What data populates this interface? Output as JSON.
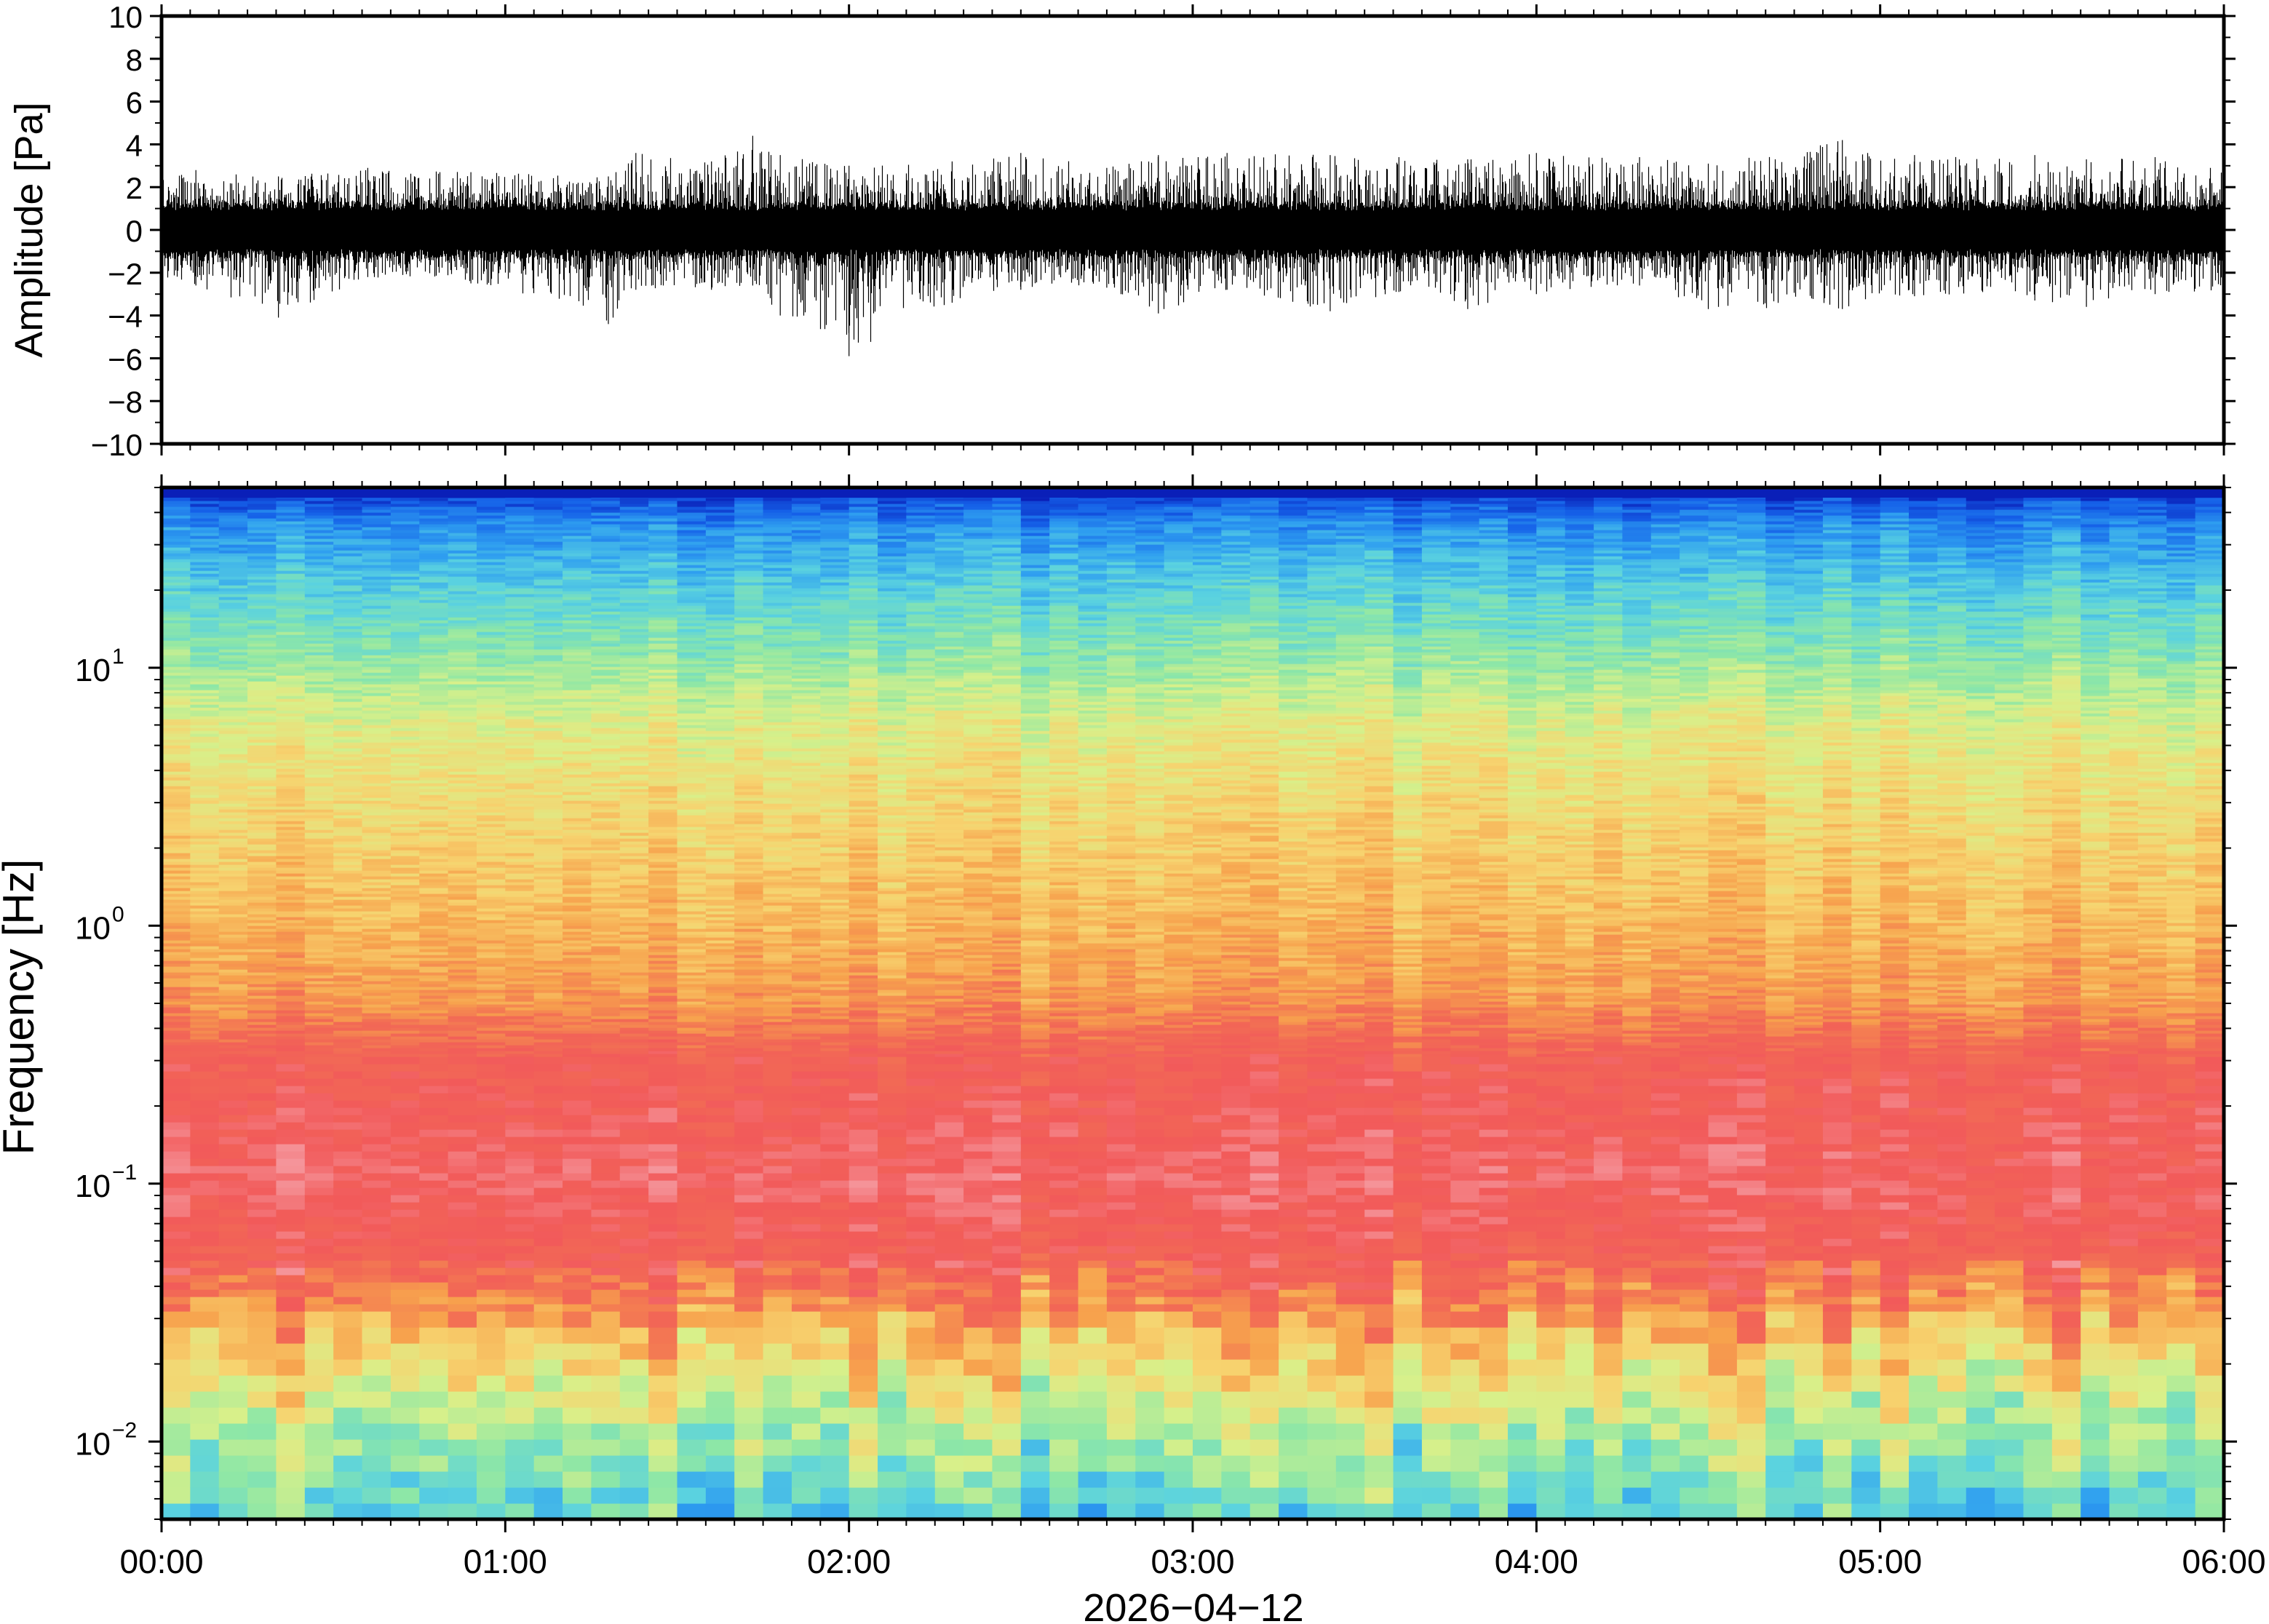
{
  "chart_data": [
    {
      "type": "line",
      "panel": "waveform",
      "title": "",
      "ylabel": "Amplitude [Pa]",
      "xlabel": "",
      "ylim": [
        -10,
        10
      ],
      "yticks": [
        10,
        8,
        6,
        4,
        2,
        0,
        -2,
        -4,
        -6,
        -8,
        -10
      ],
      "ytick_labels": [
        "10",
        "8",
        "6",
        "4",
        "2",
        "0",
        "−2",
        "−4",
        "−6",
        "−8",
        "−10"
      ],
      "xlim_hours": [
        0,
        6
      ],
      "series_color": "#000000",
      "envelope": [
        [
          0.0,
          -2.3,
          2.4
        ],
        [
          0.1,
          -2.6,
          2.8
        ],
        [
          0.34,
          -4.1,
          2.5
        ],
        [
          0.6,
          -2.2,
          2.9
        ],
        [
          0.9,
          -2.5,
          2.7
        ],
        [
          1.3,
          -4.4,
          2.5
        ],
        [
          1.38,
          -2.8,
          3.6
        ],
        [
          1.6,
          -2.8,
          3.2
        ],
        [
          1.72,
          -2.6,
          4.4
        ],
        [
          1.8,
          -4.0,
          3.5
        ],
        [
          2.0,
          -5.9,
          3.0
        ],
        [
          2.3,
          -3.4,
          3.2
        ],
        [
          2.5,
          -2.8,
          3.6
        ],
        [
          2.75,
          -2.7,
          2.9
        ],
        [
          2.9,
          -3.9,
          3.5
        ],
        [
          3.1,
          -2.8,
          3.6
        ],
        [
          3.4,
          -3.8,
          3.5
        ],
        [
          3.6,
          -2.9,
          3.4
        ],
        [
          3.8,
          -3.7,
          3.3
        ],
        [
          4.0,
          -3.0,
          3.6
        ],
        [
          4.3,
          -2.6,
          3.4
        ],
        [
          4.5,
          -3.7,
          3.1
        ],
        [
          4.89,
          -3.7,
          4.2
        ],
        [
          5.1,
          -3.1,
          3.5
        ],
        [
          5.45,
          -3.3,
          3.5
        ],
        [
          5.6,
          -3.6,
          3.3
        ],
        [
          5.8,
          -3.0,
          3.4
        ],
        [
          6.0,
          -2.8,
          3.2
        ]
      ]
    },
    {
      "type": "heatmap",
      "panel": "spectrogram",
      "title": "",
      "ylabel": "Frequency [Hz]",
      "xlabel": "2026−04−12",
      "yscale": "log",
      "ylim": [
        0.005,
        50
      ],
      "yticks": [
        {
          "value": 10,
          "base": "10",
          "exp": "1"
        },
        {
          "value": 1,
          "base": "10",
          "exp": "0"
        },
        {
          "value": 0.1,
          "base": "10",
          "exp": "−1"
        },
        {
          "value": 0.01,
          "base": "10",
          "exp": "−2"
        }
      ],
      "xlim_hours": [
        0,
        6
      ],
      "xticks_hours": [
        0,
        1,
        2,
        3,
        4,
        5,
        6
      ],
      "xtick_labels": [
        "00:00",
        "01:00",
        "02:00",
        "03:00",
        "04:00",
        "05:00",
        "06:00"
      ],
      "colormap": [
        "#0a1fb8",
        "#1560e8",
        "#2f9ff0",
        "#5ad2e0",
        "#8ee7a6",
        "#d8f08a",
        "#f7d36f",
        "#f7a24d",
        "#f26a55",
        "#f25a5a",
        "#f59aa0"
      ],
      "level_profile": [
        [
          0.005,
          0.32
        ],
        [
          0.008,
          0.4
        ],
        [
          0.012,
          0.48
        ],
        [
          0.02,
          0.6
        ],
        [
          0.03,
          0.72
        ],
        [
          0.05,
          0.86
        ],
        [
          0.1,
          0.92
        ],
        [
          0.3,
          0.86
        ],
        [
          0.5,
          0.72
        ],
        [
          1,
          0.66
        ],
        [
          3,
          0.58
        ],
        [
          6,
          0.52
        ],
        [
          10,
          0.42
        ],
        [
          20,
          0.3
        ],
        [
          35,
          0.18
        ],
        [
          50,
          0.02
        ]
      ]
    }
  ]
}
